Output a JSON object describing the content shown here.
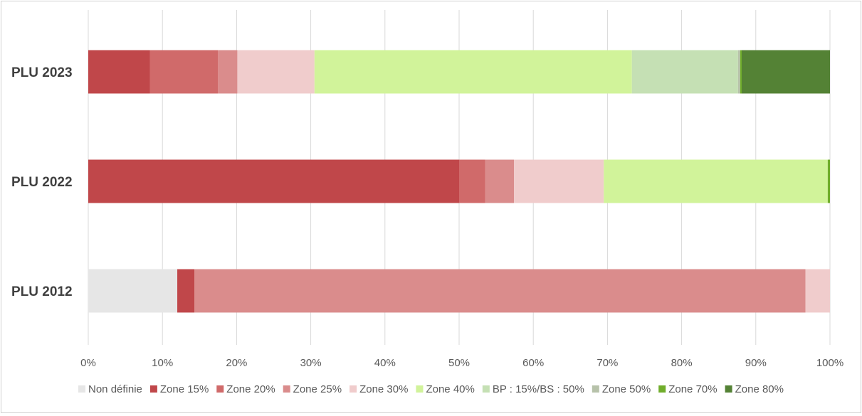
{
  "chart_data": {
    "type": "bar",
    "orientation": "horizontal",
    "stacked": "percent",
    "title": "",
    "xlabel": "",
    "ylabel": "",
    "xlim": [
      0,
      100
    ],
    "grid": true,
    "legend_position": "bottom",
    "x_ticks": [
      "0%",
      "10%",
      "20%",
      "30%",
      "40%",
      "50%",
      "60%",
      "70%",
      "80%",
      "90%",
      "100%"
    ],
    "categories": [
      "PLU 2023",
      "PLU 2022",
      "PLU 2012"
    ],
    "series": [
      {
        "name": "Non définie",
        "color": "#e6e6e6",
        "values": [
          0,
          0,
          12.0
        ]
      },
      {
        "name": "Zone 15%",
        "color": "#c0474a",
        "values": [
          8.3,
          50.0,
          2.3
        ]
      },
      {
        "name": "Zone 20%",
        "color": "#d06a6a",
        "values": [
          9.2,
          3.5,
          0
        ]
      },
      {
        "name": "Zone 25%",
        "color": "#da8c8c",
        "values": [
          2.6,
          3.9,
          82.4
        ]
      },
      {
        "name": "Zone 30%",
        "color": "#f0cccc",
        "values": [
          10.4,
          12.1,
          3.3
        ]
      },
      {
        "name": "Zone 40%",
        "color": "#d1f39a",
        "values": [
          42.8,
          30.2,
          0
        ]
      },
      {
        "name": "BP : 15%/BS : 50%",
        "color": "#c5e0b4",
        "values": [
          14.3,
          0,
          0
        ]
      },
      {
        "name": "Zone 50%",
        "color": "#b7c2aa",
        "values": [
          0.3,
          0,
          0
        ]
      },
      {
        "name": "Zone 70%",
        "color": "#70ad2b",
        "values": [
          0.2,
          0.3,
          0
        ]
      },
      {
        "name": "Zone 80%",
        "color": "#548235",
        "values": [
          11.9,
          0,
          0
        ]
      }
    ]
  }
}
